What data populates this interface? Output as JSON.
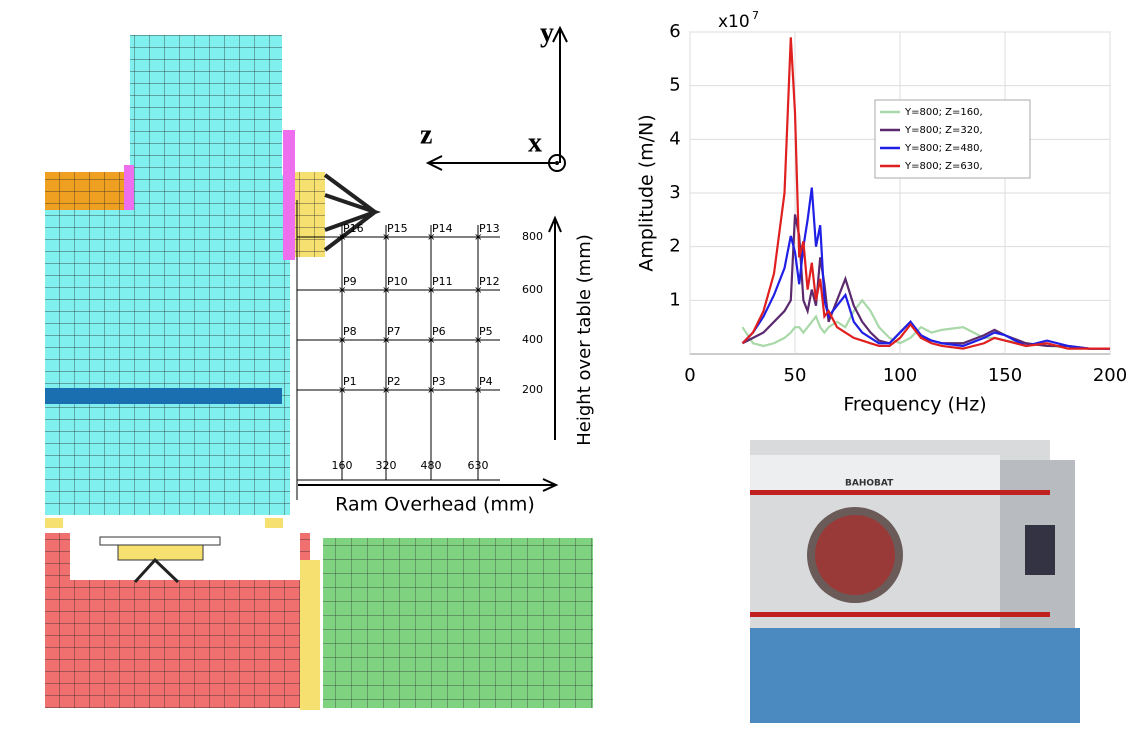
{
  "chart_data": {
    "type": "line",
    "multiplier": {
      "base": "x10",
      "exponent": "7"
    },
    "y_label": "Amplitude (m/N)",
    "x_label": "Frequency (Hz)",
    "x": [
      25,
      30,
      35,
      40,
      45,
      48,
      50,
      52,
      54,
      56,
      58,
      60,
      62,
      64,
      66,
      70,
      74,
      78,
      82,
      86,
      90,
      95,
      100,
      105,
      110,
      115,
      120,
      130,
      140,
      145,
      150,
      160,
      170,
      180,
      190,
      200
    ],
    "xlim": [
      0,
      200
    ],
    "xticks": [
      0,
      50,
      100,
      150,
      200
    ],
    "ylim": [
      0,
      6
    ],
    "yticks": [
      1,
      2,
      3,
      4,
      5,
      6
    ],
    "grid": true,
    "legend": "upper right",
    "series": [
      {
        "name": "Y=800; Z=160,",
        "color": "#a9d8a9",
        "values": [
          0.5,
          0.2,
          0.15,
          0.2,
          0.3,
          0.4,
          0.5,
          0.5,
          0.4,
          0.5,
          0.6,
          0.7,
          0.5,
          0.4,
          0.5,
          0.6,
          0.5,
          0.8,
          1.0,
          0.8,
          0.5,
          0.3,
          0.2,
          0.3,
          0.5,
          0.4,
          0.45,
          0.5,
          0.3,
          0.3,
          0.25,
          0.2,
          0.15,
          0.12,
          0.1,
          0.1
        ]
      },
      {
        "name": "Y=800; Z=320,",
        "color": "#5b2a6e",
        "values": [
          0.2,
          0.3,
          0.4,
          0.6,
          0.8,
          1.0,
          2.6,
          2.2,
          1.0,
          0.8,
          1.2,
          0.9,
          1.8,
          1.3,
          0.6,
          1.0,
          1.4,
          0.9,
          0.6,
          0.4,
          0.25,
          0.2,
          0.4,
          0.6,
          0.3,
          0.25,
          0.2,
          0.2,
          0.35,
          0.45,
          0.35,
          0.2,
          0.15,
          0.15,
          0.1,
          0.1
        ]
      },
      {
        "name": "Y=800; Z=480,",
        "color": "#1f1fe6",
        "values": [
          0.2,
          0.4,
          0.7,
          1.1,
          1.6,
          2.2,
          1.9,
          1.3,
          2.0,
          2.5,
          3.1,
          2.0,
          2.4,
          1.0,
          0.7,
          0.9,
          1.1,
          0.6,
          0.4,
          0.3,
          0.2,
          0.2,
          0.4,
          0.6,
          0.35,
          0.25,
          0.2,
          0.15,
          0.3,
          0.4,
          0.35,
          0.15,
          0.25,
          0.15,
          0.1,
          0.1
        ]
      },
      {
        "name": "Y=800; Z=630,",
        "color": "#e01f1f",
        "values": [
          0.2,
          0.4,
          0.8,
          1.5,
          3.0,
          5.9,
          4.5,
          1.8,
          2.1,
          1.2,
          1.7,
          1.0,
          1.4,
          0.7,
          0.8,
          0.5,
          0.4,
          0.3,
          0.25,
          0.2,
          0.15,
          0.15,
          0.3,
          0.55,
          0.3,
          0.2,
          0.15,
          0.1,
          0.2,
          0.3,
          0.25,
          0.15,
          0.2,
          0.1,
          0.1,
          0.1
        ]
      }
    ]
  },
  "diagram": {
    "axis_y": "y",
    "axis_z": "z",
    "axis_x": "x",
    "points": [
      [
        "P16",
        "P15",
        "P14",
        "P13"
      ],
      [
        "P9",
        "P10",
        "P11",
        "P12"
      ],
      [
        "P8",
        "P7",
        "P6",
        "P5"
      ],
      [
        "P1",
        "P2",
        "P3",
        "P4"
      ]
    ],
    "height_ticks": [
      "800",
      "600",
      "400",
      "200"
    ],
    "ram_ticks": [
      "160",
      "320",
      "480",
      "630"
    ],
    "height_label": "Height over table (mm)",
    "ram_label": "Ram Overhead (mm)"
  },
  "photo": {
    "brand": "BAHOBAT"
  }
}
